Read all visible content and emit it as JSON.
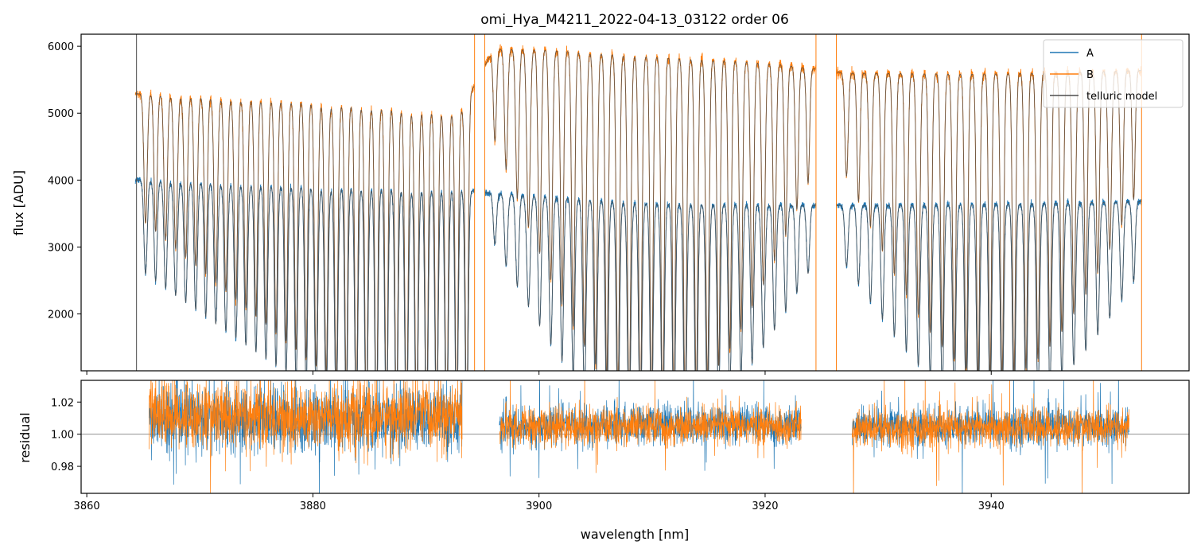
{
  "chart_data": [
    {
      "panel": "top",
      "type": "line",
      "title": "omi_Hya_M4211_2022-04-13_03122  order 06",
      "xlabel": "",
      "ylabel": "flux [ADU]",
      "xlim": [
        3859.5,
        3957.5
      ],
      "ylim": [
        1150,
        6180
      ],
      "x_ticks": [
        3860,
        3880,
        3900,
        3920,
        3940
      ],
      "x_tick_labels_shown": false,
      "y_ticks": [
        2000,
        3000,
        4000,
        5000,
        6000
      ],
      "y_tick_labels": [
        "2000",
        "3000",
        "4000",
        "5000",
        "6000"
      ],
      "grid": false,
      "legend_position": "top-right",
      "segments_nm": [
        [
          3864.3,
          3894.3
        ],
        [
          3895.2,
          3924.5
        ],
        [
          3926.3,
          3953.3
        ]
      ],
      "series": [
        {
          "name": "A",
          "color": "#1f77b4",
          "continuum_approx": [
            [
              3865,
              4000
            ],
            [
              3880,
              3900
            ],
            [
              3893,
              3860
            ],
            [
              3896,
              3800
            ],
            [
              3900,
              3760
            ],
            [
              3910,
              3650
            ],
            [
              3920,
              3630
            ],
            [
              3927,
              3620
            ],
            [
              3940,
              3640
            ],
            [
              3953,
              3680
            ]
          ]
        },
        {
          "name": "B",
          "color": "#ff7f0e",
          "continuum_approx": [
            [
              3865,
              5290
            ],
            [
              3880,
              5170
            ],
            [
              3893,
              5000
            ],
            [
              3896,
              5960
            ],
            [
              3900,
              5960
            ],
            [
              3910,
              5850
            ],
            [
              3920,
              5760
            ],
            [
              3927,
              5600
            ],
            [
              3940,
              5590
            ],
            [
              3953,
              5640
            ]
          ]
        },
        {
          "name": "telluric model",
          "color": "#4d4d4d"
        }
      ]
    },
    {
      "panel": "bottom",
      "type": "line",
      "title": "",
      "xlabel": "wavelength [nm]",
      "ylabel": "residual",
      "xlim": [
        3859.5,
        3957.5
      ],
      "ylim": [
        0.9632,
        1.0335
      ],
      "x_ticks": [
        3860,
        3880,
        3900,
        3920,
        3940
      ],
      "x_tick_labels": [
        "3860",
        "3880",
        "3900",
        "3920",
        "3940"
      ],
      "y_ticks": [
        0.98,
        1.0,
        1.02
      ],
      "y_tick_labels": [
        "0.98",
        "1.00",
        "1.02"
      ],
      "reference_line": 1.0,
      "segments_nm": [
        [
          3865.5,
          3893.2
        ],
        [
          3896.5,
          3923.2
        ],
        [
          3927.7,
          3952.2
        ]
      ],
      "series": [
        {
          "name": "A",
          "color": "#1f77b4",
          "scatter_approx": [
            [
              3865.5,
              1.01
            ],
            [
              3880,
              1.008
            ],
            [
              3893,
              1.01
            ],
            [
              3896.5,
              1.004
            ],
            [
              3910,
              1.006
            ],
            [
              3923,
              1.006
            ],
            [
              3927.7,
              1.004
            ],
            [
              3940,
              1.005
            ],
            [
              3952,
              1.005
            ]
          ]
        },
        {
          "name": "B",
          "color": "#ff7f0e",
          "scatter_approx": [
            [
              3865.5,
              1.012
            ],
            [
              3880,
              1.01
            ],
            [
              3893,
              1.012
            ],
            [
              3896.5,
              1.004
            ],
            [
              3910,
              1.005
            ],
            [
              3923,
              1.005
            ],
            [
              3927.7,
              1.003
            ],
            [
              3940,
              1.004
            ],
            [
              3952,
              1.004
            ]
          ]
        }
      ]
    }
  ]
}
